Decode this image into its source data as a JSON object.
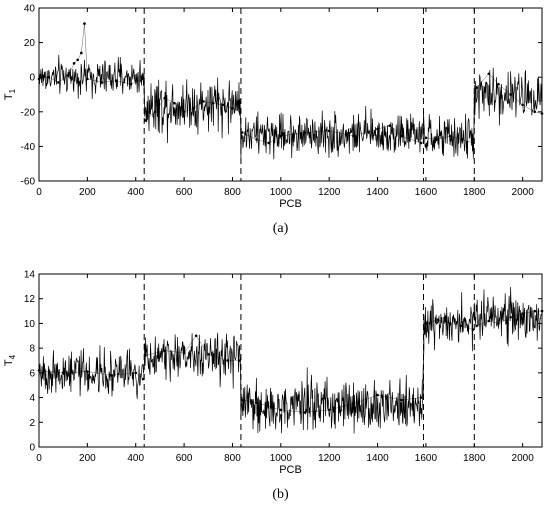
{
  "chart_data": [
    {
      "type": "line",
      "caption": "(a)",
      "xlabel": "PCB",
      "ylabel": "T",
      "ylabel_sub": "1",
      "xlim": [
        0,
        2080
      ],
      "ylim": [
        -60,
        40
      ],
      "xticks": [
        0,
        200,
        400,
        600,
        800,
        1000,
        1200,
        1400,
        1600,
        1800,
        2000
      ],
      "yticks": [
        -60,
        -40,
        -20,
        0,
        20,
        40
      ],
      "grid": false,
      "line_color": "#000000",
      "change_points": [
        435,
        835,
        1590,
        1800
      ],
      "segments": [
        {
          "start": 0,
          "end": 435,
          "mean": 0,
          "sd": 5
        },
        {
          "start": 435,
          "end": 835,
          "mean": -16,
          "sd": 8
        },
        {
          "start": 835,
          "end": 1590,
          "mean": -33,
          "sd": 6
        },
        {
          "start": 1590,
          "end": 1800,
          "mean": -35,
          "sd": 6
        },
        {
          "start": 1800,
          "end": 2080,
          "mean": -10,
          "sd": 7
        }
      ],
      "series": [
        {
          "values": [
            [
              0,
              -1
            ],
            [
              40,
              0
            ],
            [
              80,
              -3
            ],
            [
              120,
              1
            ],
            [
              145,
              8
            ],
            [
              160,
              10
            ],
            [
              175,
              14
            ],
            [
              188,
              31
            ],
            [
              200,
              -1
            ],
            [
              260,
              -3
            ],
            [
              320,
              -2
            ],
            [
              380,
              -4
            ],
            [
              430,
              -1
            ],
            [
              440,
              -25
            ],
            [
              480,
              -20
            ],
            [
              520,
              -12
            ],
            [
              560,
              -15
            ],
            [
              600,
              -20
            ],
            [
              640,
              -18
            ],
            [
              680,
              -14
            ],
            [
              720,
              -15
            ],
            [
              760,
              -16
            ],
            [
              800,
              -18
            ],
            [
              830,
              -20
            ],
            [
              840,
              -32
            ],
            [
              900,
              -36
            ],
            [
              950,
              -38
            ],
            [
              1000,
              -34
            ],
            [
              1100,
              -32
            ],
            [
              1200,
              -31
            ],
            [
              1300,
              -34
            ],
            [
              1400,
              -30
            ],
            [
              1450,
              -28
            ],
            [
              1500,
              -34
            ],
            [
              1580,
              -38
            ],
            [
              1600,
              -35
            ],
            [
              1650,
              -36
            ],
            [
              1700,
              -34
            ],
            [
              1750,
              -36
            ],
            [
              1795,
              -38
            ],
            [
              1810,
              -6
            ],
            [
              1860,
              2
            ],
            [
              1900,
              -4
            ],
            [
              1950,
              -10
            ],
            [
              2000,
              -16
            ],
            [
              2050,
              -20
            ],
            [
              2080,
              -21
            ]
          ]
        }
      ]
    },
    {
      "type": "line",
      "caption": "(b)",
      "xlabel": "PCB",
      "ylabel": "T",
      "ylabel_sub": "4",
      "xlim": [
        0,
        2080
      ],
      "ylim": [
        0,
        14
      ],
      "xticks": [
        0,
        200,
        400,
        600,
        800,
        1000,
        1200,
        1400,
        1600,
        1800,
        2000
      ],
      "yticks": [
        0,
        2,
        4,
        6,
        8,
        10,
        12,
        14
      ],
      "grid": false,
      "line_color": "#000000",
      "change_points": [
        435,
        835,
        1590,
        1800
      ],
      "segments": [
        {
          "start": 0,
          "end": 435,
          "mean": 6,
          "sd": 0.9
        },
        {
          "start": 435,
          "end": 835,
          "mean": 7.5,
          "sd": 1.0
        },
        {
          "start": 835,
          "end": 1590,
          "mean": 3.3,
          "sd": 1.0
        },
        {
          "start": 1590,
          "end": 1800,
          "mean": 10,
          "sd": 0.9
        },
        {
          "start": 1800,
          "end": 2080,
          "mean": 10.5,
          "sd": 1.0
        }
      ],
      "series": [
        {
          "values": [
            [
              0,
              6.2
            ],
            [
              100,
              6.0
            ],
            [
              200,
              6.1
            ],
            [
              300,
              5.8
            ],
            [
              400,
              6.0
            ],
            [
              430,
              5.5
            ],
            [
              440,
              7.4
            ],
            [
              520,
              7.8
            ],
            [
              600,
              7.6
            ],
            [
              650,
              9.0
            ],
            [
              700,
              7.5
            ],
            [
              780,
              7.0
            ],
            [
              830,
              7.0
            ],
            [
              840,
              3.8
            ],
            [
              900,
              3.6
            ],
            [
              1000,
              3.0
            ],
            [
              1100,
              2.8
            ],
            [
              1200,
              3.0
            ],
            [
              1300,
              3.5
            ],
            [
              1400,
              4.2
            ],
            [
              1500,
              3.8
            ],
            [
              1580,
              4.0
            ],
            [
              1600,
              10.0
            ],
            [
              1650,
              10.3
            ],
            [
              1700,
              10.0
            ],
            [
              1750,
              9.8
            ],
            [
              1795,
              9.5
            ],
            [
              1810,
              9.8
            ],
            [
              1860,
              10.2
            ],
            [
              1900,
              10.0
            ],
            [
              1950,
              10.5
            ],
            [
              2000,
              10.8
            ],
            [
              2050,
              11.0
            ],
            [
              2080,
              11.0
            ]
          ]
        }
      ]
    }
  ]
}
